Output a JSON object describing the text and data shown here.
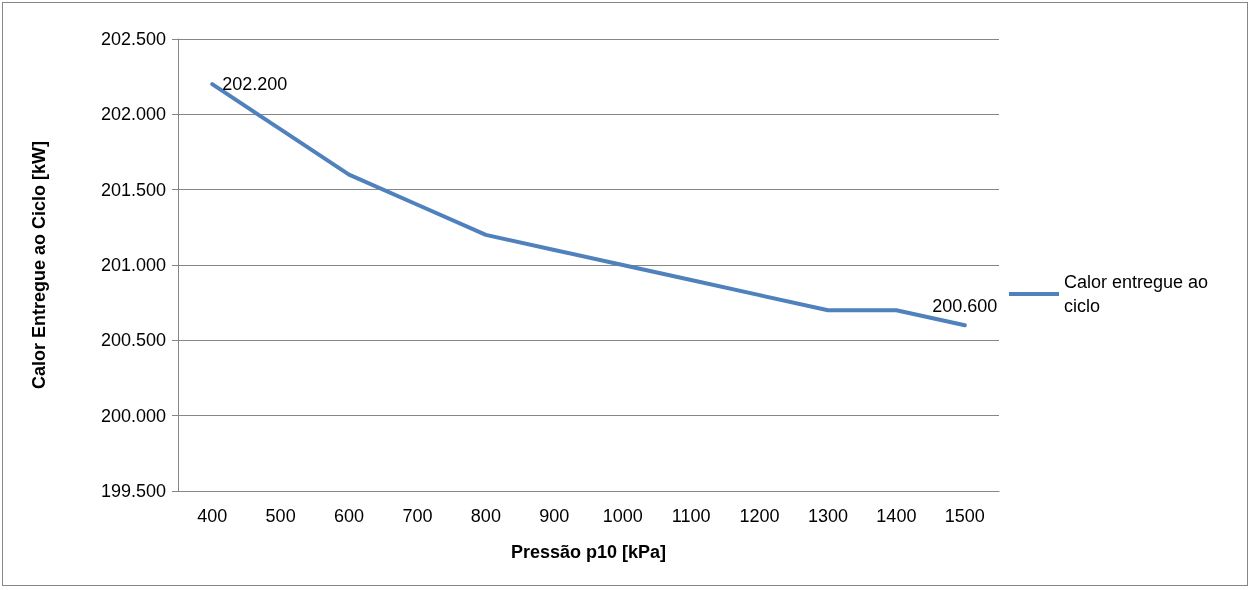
{
  "chart_data": {
    "type": "line",
    "xlabel": "Pressão p10 [kPa]",
    "ylabel": "Calor Entregue ao Ciclo [kW]",
    "categories": [
      "400",
      "500",
      "600",
      "700",
      "800",
      "900",
      "1000",
      "1100",
      "1200",
      "1300",
      "1400",
      "1500"
    ],
    "series": [
      {
        "name": "Calor entregue ao ciclo",
        "color": "#4f81bd",
        "values": [
          202200,
          201900,
          201600,
          201400,
          201200,
          201100,
          201000,
          200900,
          200800,
          200700,
          200700,
          200600
        ],
        "value_labels": [
          "202.200",
          null,
          null,
          null,
          null,
          null,
          null,
          null,
          null,
          null,
          null,
          "200.600"
        ]
      }
    ],
    "ylim": [
      199500,
      202500
    ],
    "yticks": [
      {
        "value": 199500,
        "label": "199.500"
      },
      {
        "value": 200000,
        "label": "200.000"
      },
      {
        "value": 200500,
        "label": "200.500"
      },
      {
        "value": 201000,
        "label": "201.000"
      },
      {
        "value": 201500,
        "label": "201.500"
      },
      {
        "value": 202000,
        "label": "202.000"
      },
      {
        "value": 202500,
        "label": "202.500"
      }
    ],
    "grid": "y",
    "legend": "right",
    "marker": "none",
    "line_style": "solid"
  }
}
